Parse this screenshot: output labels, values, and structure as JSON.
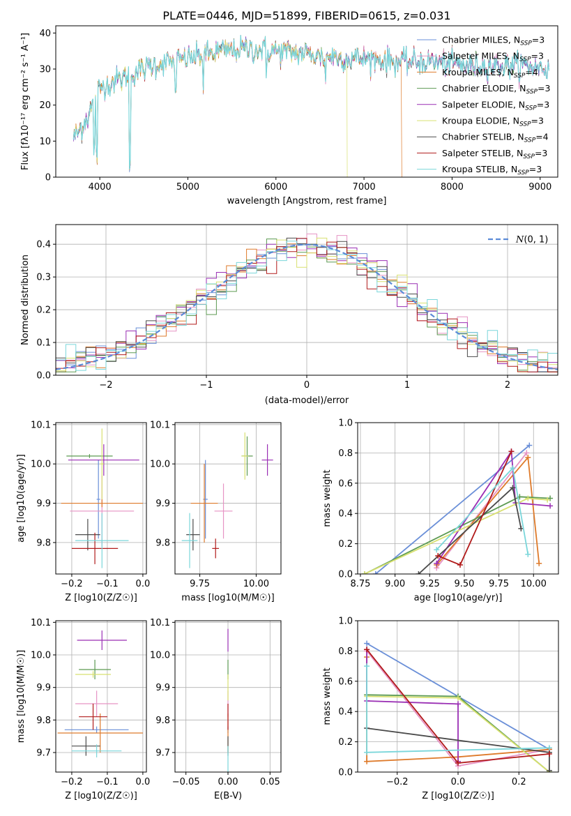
{
  "title": "PLATE=0446, MJD=51899, FIBERID=0615, z=0.031",
  "models": [
    {
      "name": "Chabrier MILES, N_SSP=3",
      "color": "#6a8fd8"
    },
    {
      "name": "Salpeter MILES, N_SSP=3",
      "color": "#e693c4"
    },
    {
      "name": "Kroupa MILES, N_SSP=4",
      "color": "#de7a2a"
    },
    {
      "name": "Chabrier ELODIE, N_SSP=3",
      "color": "#5c9a52"
    },
    {
      "name": "Salpeter ELODIE, N_SSP=3",
      "color": "#9a2fb4"
    },
    {
      "name": "Kroupa ELODIE, N_SSP=3",
      "color": "#d8e070"
    },
    {
      "name": "Chabrier STELIB, N_SSP=4",
      "color": "#4a4a4a"
    },
    {
      "name": "Salpeter STELIB, N_SSP=3",
      "color": "#b11a1a"
    },
    {
      "name": "Kroupa STELIB, N_SSP=3",
      "color": "#7ad6da"
    }
  ],
  "legend_entries": [
    {
      "pre": "Chabrier MILES, N",
      "sub": "SSP",
      "post": "=3"
    },
    {
      "pre": "Salpeter MILES, N",
      "sub": "SSP",
      "post": "=3"
    },
    {
      "pre": "Kroupa MILES, N",
      "sub": "SSP",
      "post": "=4"
    },
    {
      "pre": "Chabrier ELODIE, N",
      "sub": "SSP",
      "post": "=3"
    },
    {
      "pre": "Salpeter ELODIE, N",
      "sub": "SSP",
      "post": "=3"
    },
    {
      "pre": "Kroupa ELODIE, N",
      "sub": "SSP",
      "post": "=3"
    },
    {
      "pre": "Chabrier STELIB, N",
      "sub": "SSP",
      "post": "=4"
    },
    {
      "pre": "Salpeter STELIB, N",
      "sub": "SSP",
      "post": "=3"
    },
    {
      "pre": "Kroupa STELIB, N",
      "sub": "SSP",
      "post": "=3"
    }
  ],
  "chart_data": [
    {
      "id": "spectrum",
      "type": "line",
      "xlabel": "wavelength [Angstrom, rest frame]",
      "ylabel": "Flux [fλ10⁻¹⁷ erg cm⁻² s⁻¹ A⁻¹]",
      "xlim": [
        3500,
        9200
      ],
      "ylim": [
        0,
        42
      ],
      "xticks": [
        4000,
        5000,
        6000,
        7000,
        8000,
        9000
      ],
      "yticks": [
        0,
        10,
        20,
        30,
        40
      ],
      "continuum": {
        "x": [
          3700,
          3800,
          3900,
          3950,
          4000,
          4100,
          4200,
          4300,
          4400,
          4600,
          4800,
          5000,
          5200,
          5400,
          5600,
          5800,
          6000,
          6200,
          6400,
          6600,
          6800,
          7000,
          7200,
          7400,
          7600,
          7800,
          8000,
          8200,
          8400,
          8600,
          8800,
          9100
        ],
        "y": [
          11,
          14,
          19,
          22,
          25,
          26,
          27,
          28,
          29,
          31,
          32,
          33,
          34,
          35,
          35.5,
          35.5,
          35,
          34.5,
          34,
          33.5,
          33,
          33,
          32.5,
          32,
          32,
          32,
          31.5,
          31,
          31,
          31,
          31,
          30
        ]
      },
      "absorption_dips": [
        {
          "x": 3934,
          "y": 5
        },
        {
          "x": 3968,
          "y": 3
        },
        {
          "x": 4340,
          "y": 0
        },
        {
          "x": 4861,
          "y": 21
        },
        {
          "x": 5175,
          "y": 24
        },
        {
          "x": 5890,
          "y": 27
        },
        {
          "x": 6563,
          "y": 26
        }
      ],
      "cutoffs": [
        {
          "model": 5,
          "x": 6810
        },
        {
          "model": 2,
          "x": 7430
        }
      ],
      "legend_position": "upper right"
    },
    {
      "id": "residuals",
      "type": "histogram",
      "xlabel": "(data-model)/error",
      "ylabel": "Normed distribution",
      "xlim": [
        -2.5,
        2.5
      ],
      "ylim": [
        0,
        0.46
      ],
      "xticks": [
        -2,
        -1,
        0,
        1,
        2
      ],
      "yticks": [
        0.0,
        0.1,
        0.2,
        0.3,
        0.4
      ],
      "bin_width": 0.1,
      "reference_curve": "N(0,1)",
      "legend_position": "upper right"
    },
    {
      "id": "Z-age",
      "type": "errorbar",
      "xlabel": "Z [log10(Z/Z☉)]",
      "ylabel": "age [log10(age/yr)]",
      "xlim": [
        -0.245,
        0.01
      ],
      "ylim": [
        9.72,
        10.105
      ],
      "xticks": [
        -0.2,
        -0.1,
        0.0
      ],
      "yticks": [
        9.8,
        9.9,
        10.0,
        10.1
      ],
      "points": [
        {
          "model": 0,
          "x": -0.125,
          "xerr": 0.005,
          "y": 9.91,
          "yerr": 0.1
        },
        {
          "model": 1,
          "x": -0.115,
          "xerr": 0.09,
          "y": 9.88,
          "yerr": 0.09
        },
        {
          "model": 2,
          "x": -0.115,
          "xerr": 0.115,
          "y": 9.9,
          "yerr": 0.01
        },
        {
          "model": 3,
          "x": -0.15,
          "xerr": 0.065,
          "y": 10.02,
          "yerr": 0.005
        },
        {
          "model": 4,
          "x": -0.11,
          "xerr": 0.1,
          "y": 10.01,
          "yerr": 0.04
        },
        {
          "model": 5,
          "x": -0.115,
          "xerr": 0.005,
          "y": 10.0,
          "yerr": 0.09
        },
        {
          "model": 6,
          "x": -0.155,
          "xerr": 0.035,
          "y": 9.82,
          "yerr": 0.04
        },
        {
          "model": 7,
          "x": -0.135,
          "xerr": 0.065,
          "y": 9.785,
          "yerr": 0.04
        },
        {
          "model": 8,
          "x": -0.115,
          "xerr": 0.075,
          "y": 9.805,
          "yerr": 0.07
        }
      ]
    },
    {
      "id": "mass-age",
      "type": "errorbar",
      "xlabel": "mass [log10(M/M☉)]",
      "ylabel": "",
      "xlim": [
        9.64,
        10.11
      ],
      "ylim": [
        9.72,
        10.105
      ],
      "xticks": [
        9.75,
        10.0
      ],
      "yticks": [
        9.8,
        9.9,
        10.0,
        10.1
      ],
      "points": [
        {
          "model": 0,
          "x": 9.775,
          "xerr": 0.01,
          "y": 9.91,
          "yerr": 0.1
        },
        {
          "model": 1,
          "x": 9.855,
          "xerr": 0.04,
          "y": 9.88,
          "yerr": 0.07
        },
        {
          "model": 2,
          "x": 9.77,
          "xerr": 0.06,
          "y": 9.9,
          "yerr": 0.1
        },
        {
          "model": 3,
          "x": 9.96,
          "xerr": 0.025,
          "y": 10.02,
          "yerr": 0.05
        },
        {
          "model": 4,
          "x": 10.05,
          "xerr": 0.025,
          "y": 10.01,
          "yerr": 0.04
        },
        {
          "model": 5,
          "x": 9.95,
          "xerr": 0.015,
          "y": 10.02,
          "yerr": 0.06
        },
        {
          "model": 6,
          "x": 9.72,
          "xerr": 0.03,
          "y": 9.82,
          "yerr": 0.04
        },
        {
          "model": 7,
          "x": 9.82,
          "xerr": 0.015,
          "y": 9.785,
          "yerr": 0.025
        },
        {
          "model": 8,
          "x": 9.705,
          "xerr": 0.035,
          "y": 9.805,
          "yerr": 0.07
        }
      ]
    },
    {
      "id": "age-weight",
      "type": "line",
      "xlabel": "age [log10(age/yr)]",
      "ylabel": "mass weight",
      "xlim": [
        8.73,
        10.18
      ],
      "ylim": [
        0,
        1.0
      ],
      "xticks": [
        8.75,
        9.0,
        9.25,
        9.5,
        9.75,
        10.0
      ],
      "yticks": [
        0.0,
        0.2,
        0.4,
        0.6,
        0.8,
        1.0
      ],
      "series": [
        {
          "model": 0,
          "x": [
            8.86,
            9.97
          ],
          "y": [
            0.0,
            0.85
          ]
        },
        {
          "model": 1,
          "x": [
            9.3,
            9.95
          ],
          "y": [
            0.04,
            0.8
          ]
        },
        {
          "model": 2,
          "x": [
            9.3,
            9.96,
            10.04
          ],
          "y": [
            0.06,
            0.77,
            0.07
          ]
        },
        {
          "model": 3,
          "x": [
            8.78,
            9.9,
            10.12
          ],
          "y": [
            0.0,
            0.51,
            0.5
          ]
        },
        {
          "model": 4,
          "x": [
            9.3,
            9.84,
            9.87,
            10.12
          ],
          "y": [
            0.07,
            0.81,
            0.47,
            0.45
          ]
        },
        {
          "model": 5,
          "x": [
            8.78,
            9.96,
            10.1
          ],
          "y": [
            0.0,
            0.5,
            0.49
          ]
        },
        {
          "model": 6,
          "x": [
            9.17,
            9.85,
            9.91
          ],
          "y": [
            0.0,
            0.57,
            0.3
          ]
        },
        {
          "model": 7,
          "x": [
            9.31,
            9.47,
            9.84
          ],
          "y": [
            0.12,
            0.06,
            0.81
          ]
        },
        {
          "model": 8,
          "x": [
            9.3,
            9.85,
            9.96
          ],
          "y": [
            0.16,
            0.7,
            0.13
          ]
        }
      ]
    },
    {
      "id": "Z-mass",
      "type": "errorbar",
      "xlabel": "Z [log10(Z/Z☉)]",
      "ylabel": "mass [log10(M/M☉)]",
      "xlim": [
        -0.245,
        0.01
      ],
      "ylim": [
        9.64,
        10.105
      ],
      "xticks": [
        -0.2,
        -0.1,
        0.0
      ],
      "yticks": [
        9.7,
        9.8,
        9.9,
        10.0,
        10.1
      ],
      "points": [
        {
          "model": 0,
          "x": -0.13,
          "xerr": 0.09,
          "y": 9.77,
          "yerr": 0.01
        },
        {
          "model": 1,
          "x": -0.13,
          "xerr": 0.06,
          "y": 9.85,
          "yerr": 0.04
        },
        {
          "model": 2,
          "x": -0.12,
          "xerr": 0.12,
          "y": 9.76,
          "yerr": 0.06
        },
        {
          "model": 3,
          "x": -0.135,
          "xerr": 0.045,
          "y": 9.955,
          "yerr": 0.03
        },
        {
          "model": 4,
          "x": -0.115,
          "xerr": 0.07,
          "y": 10.045,
          "yerr": 0.03
        },
        {
          "model": 5,
          "x": -0.14,
          "xerr": 0.05,
          "y": 9.94,
          "yerr": 0.01
        },
        {
          "model": 6,
          "x": -0.16,
          "xerr": 0.04,
          "y": 9.72,
          "yerr": 0.03
        },
        {
          "model": 7,
          "x": -0.14,
          "xerr": 0.04,
          "y": 9.81,
          "yerr": 0.04
        },
        {
          "model": 8,
          "x": -0.13,
          "xerr": 0.07,
          "y": 9.705,
          "yerr": 0.02
        }
      ]
    },
    {
      "id": "EBV-mass",
      "type": "errorbar",
      "xlabel": "E(B-V)",
      "ylabel": "",
      "xlim": [
        -0.063,
        0.063
      ],
      "ylim": [
        9.64,
        10.105
      ],
      "xticks": [
        -0.05,
        0.0,
        0.05
      ],
      "yticks": [
        9.7,
        9.8,
        9.9,
        10.0,
        10.1
      ],
      "points": [
        {
          "model": 0,
          "x": 0,
          "xerr": 0,
          "y": 9.77,
          "yerr": 0.01
        },
        {
          "model": 1,
          "x": 0,
          "xerr": 0,
          "y": 9.85,
          "yerr": 0.04
        },
        {
          "model": 2,
          "x": 0,
          "xerr": 0,
          "y": 9.76,
          "yerr": 0.06
        },
        {
          "model": 3,
          "x": 0,
          "xerr": 0,
          "y": 9.955,
          "yerr": 0.03
        },
        {
          "model": 4,
          "x": 0,
          "xerr": 0,
          "y": 10.045,
          "yerr": 0.035
        },
        {
          "model": 5,
          "x": 0,
          "xerr": 0,
          "y": 9.9,
          "yerr": 0.04
        },
        {
          "model": 6,
          "x": 0,
          "xerr": 0,
          "y": 9.72,
          "yerr": 0.03
        },
        {
          "model": 7,
          "x": 0,
          "xerr": 0,
          "y": 9.81,
          "yerr": 0.04
        },
        {
          "model": 8,
          "x": 0,
          "xerr": 0,
          "y": 9.68,
          "yerr": 0.04
        }
      ]
    },
    {
      "id": "Z-weight",
      "type": "line",
      "xlabel": "Z [log10(Z/Z☉)]",
      "ylabel": "mass weight",
      "xlim": [
        -0.33,
        0.33
      ],
      "ylim": [
        0,
        1.0
      ],
      "xticks": [
        -0.2,
        0.0,
        0.2
      ],
      "yticks": [
        0.0,
        0.2,
        0.4,
        0.6,
        0.8,
        1.0
      ],
      "series": [
        {
          "model": 0,
          "x": [
            -0.3,
            0.0,
            0.3
          ],
          "y": [
            0.85,
            0.5,
            0.15
          ]
        },
        {
          "model": 1,
          "x": [
            -0.3,
            0.0,
            0.3
          ],
          "y": [
            0.8,
            0.04,
            0.15
          ]
        },
        {
          "model": 2,
          "x": [
            -0.3,
            -0.3,
            0.0,
            0.3
          ],
          "y": [
            0.76,
            0.07,
            0.1,
            0.15
          ]
        },
        {
          "model": 3,
          "x": [
            -0.3,
            0.0,
            0.3
          ],
          "y": [
            0.51,
            0.5,
            0.0
          ]
        },
        {
          "model": 4,
          "x": [
            -0.3,
            -0.3,
            0.0,
            0.0
          ],
          "y": [
            0.81,
            0.47,
            0.45,
            0.07
          ]
        },
        {
          "model": 5,
          "x": [
            -0.3,
            0.0,
            0.3
          ],
          "y": [
            0.5,
            0.49,
            0.0
          ]
        },
        {
          "model": 6,
          "x": [
            -0.3,
            0.3,
            0.3
          ],
          "y": [
            0.29,
            0.13,
            0.01
          ]
        },
        {
          "model": 7,
          "x": [
            -0.3,
            0.0,
            0.3
          ],
          "y": [
            0.81,
            0.06,
            0.12
          ]
        },
        {
          "model": 8,
          "x": [
            -0.3,
            -0.3,
            0.3
          ],
          "y": [
            0.7,
            0.13,
            0.16
          ]
        }
      ]
    }
  ]
}
